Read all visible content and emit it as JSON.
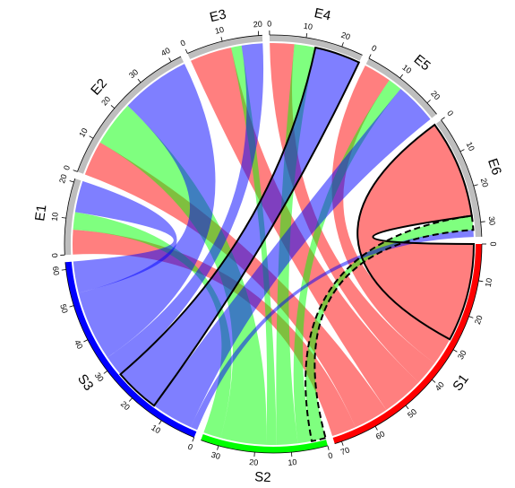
{
  "chart_data": {
    "type": "chord",
    "row_sectors": [
      {
        "name": "S1",
        "color": "#FF0000",
        "xlim": [
          0,
          72
        ],
        "xticks": [
          0,
          10,
          20,
          30,
          40,
          50,
          60,
          70
        ]
      },
      {
        "name": "S2",
        "color": "#00FF00",
        "xlim": [
          0,
          35
        ],
        "xticks": [
          0,
          10,
          20,
          30
        ]
      },
      {
        "name": "S3",
        "color": "#0000FF",
        "xlim": [
          0,
          62
        ],
        "xticks": [
          0,
          10,
          20,
          30,
          40,
          50,
          60
        ]
      }
    ],
    "column_sectors": [
      {
        "name": "E1",
        "color": "#BEBEBE",
        "xlim": [
          0,
          21
        ],
        "xticks": [
          0,
          10,
          20
        ]
      },
      {
        "name": "E2",
        "color": "#BEBEBE",
        "xlim": [
          0,
          43
        ],
        "xticks": [
          0,
          10,
          20,
          30,
          40
        ]
      },
      {
        "name": "E3",
        "color": "#BEBEBE",
        "xlim": [
          0,
          21
        ],
        "xticks": [
          0,
          10,
          20
        ]
      },
      {
        "name": "E4",
        "color": "#BEBEBE",
        "xlim": [
          0,
          26
        ],
        "xticks": [
          0,
          10,
          20
        ]
      },
      {
        "name": "E5",
        "color": "#BEBEBE",
        "xlim": [
          0,
          24
        ],
        "xticks": [
          0,
          10,
          20
        ]
      },
      {
        "name": "E6",
        "color": "#BEBEBE",
        "xlim": [
          0,
          34
        ],
        "xticks": [
          0,
          10,
          20,
          30
        ]
      }
    ],
    "matrix": [
      [
        7,
        10,
        12,
        7,
        8,
        28
      ],
      [
        5,
        13,
        3,
        6,
        4,
        4
      ],
      [
        9,
        20,
        6,
        13,
        12,
        2
      ]
    ],
    "link_opacity": 0.5,
    "highlight": [
      {
        "row": 2,
        "column": 3,
        "line": "solid"
      },
      {
        "row": 0,
        "column": 5,
        "line": "solid"
      },
      {
        "row": 1,
        "column": 5,
        "line": "dashed"
      }
    ]
  }
}
